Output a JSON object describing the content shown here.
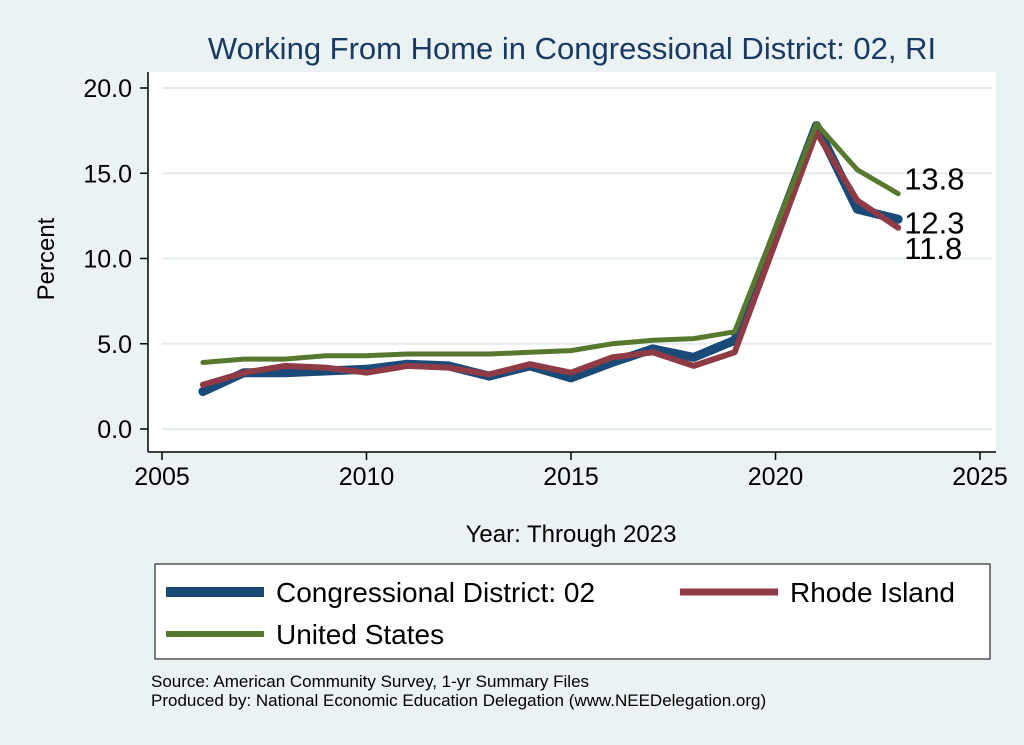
{
  "chart_data": {
    "type": "line",
    "title": "Working From Home in Congressional District: 02, RI",
    "xlabel": "Year: Through 2023",
    "ylabel": "Percent",
    "xlim": [
      2005,
      2025
    ],
    "ylim": [
      0,
      20
    ],
    "xticks": [
      2005,
      2010,
      2015,
      2020,
      2025
    ],
    "yticks": [
      0,
      5,
      10,
      15,
      20
    ],
    "ytick_labels": [
      "0.0",
      "5.0",
      "10.0",
      "15.0",
      "20.0"
    ],
    "grid": true,
    "legend_position": "bottom",
    "x": [
      2006,
      2007,
      2008,
      2009,
      2010,
      2011,
      2012,
      2013,
      2014,
      2015,
      2016,
      2017,
      2018,
      2019,
      2021,
      2022,
      2023
    ],
    "series": [
      {
        "name": "Congressional District: 02",
        "color": "#1a4a78",
        "width": 9,
        "values": [
          2.2,
          3.3,
          3.3,
          3.4,
          3.5,
          3.8,
          3.7,
          3.1,
          3.7,
          3.0,
          3.9,
          4.7,
          4.2,
          5.2,
          17.8,
          12.9,
          12.3
        ]
      },
      {
        "name": "Rhode Island",
        "color": "#8f3b46",
        "width": 6,
        "values": [
          2.6,
          3.3,
          3.7,
          3.6,
          3.3,
          3.7,
          3.6,
          3.2,
          3.8,
          3.3,
          4.2,
          4.5,
          3.7,
          4.5,
          17.4,
          13.4,
          11.8
        ]
      },
      {
        "name": "United States",
        "color": "#58782f",
        "width": 5,
        "values": [
          3.9,
          4.1,
          4.1,
          4.3,
          4.3,
          4.4,
          4.4,
          4.4,
          4.5,
          4.6,
          5.0,
          5.2,
          5.3,
          5.7,
          17.9,
          15.2,
          13.8
        ]
      }
    ],
    "end_labels": [
      {
        "series": "United States",
        "text": "13.8"
      },
      {
        "series": "Congressional District: 02",
        "text": "12.3"
      },
      {
        "series": "Rhode Island",
        "text": "11.8"
      }
    ]
  },
  "notes": {
    "source": "Source: American Community Survey, 1-yr Summary Files",
    "produced_by": "Produced by: National Economic Education Delegation (www.NEEDelegation.org)"
  }
}
